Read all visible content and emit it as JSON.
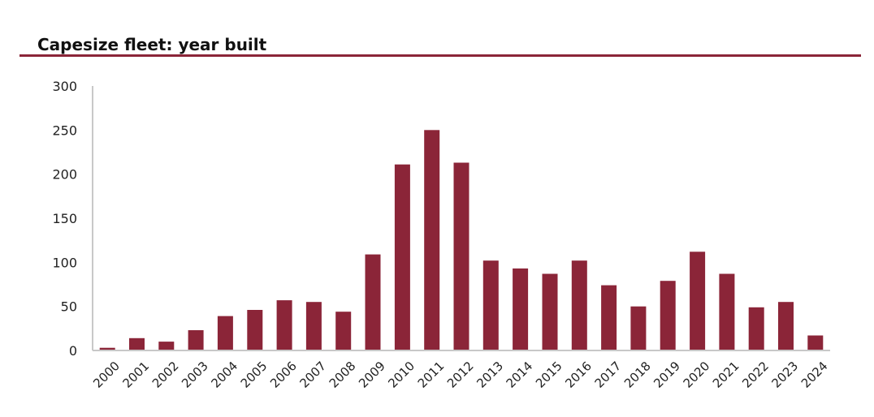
{
  "colors": {
    "bar": "#8B2538",
    "title_rule": "#8B2538",
    "axis": "#C8C8C8"
  },
  "chart_data": {
    "type": "bar",
    "title": "Capesize fleet: year built",
    "xlabel": "",
    "ylabel": "",
    "ylim": [
      0,
      300
    ],
    "yticks": [
      0,
      50,
      100,
      150,
      200,
      250,
      300
    ],
    "grid": false,
    "legend": "none",
    "categories": [
      "2000",
      "2001",
      "2002",
      "2003",
      "2004",
      "2005",
      "2006",
      "2007",
      "2008",
      "2009",
      "2010",
      "2011",
      "2012",
      "2013",
      "2014",
      "2015",
      "2016",
      "2017",
      "2018",
      "2019",
      "2020",
      "2021",
      "2022",
      "2023",
      "2024"
    ],
    "values": [
      3,
      14,
      10,
      23,
      39,
      46,
      57,
      55,
      44,
      109,
      211,
      250,
      213,
      102,
      93,
      87,
      102,
      74,
      50,
      79,
      112,
      87,
      49,
      55,
      17
    ]
  }
}
